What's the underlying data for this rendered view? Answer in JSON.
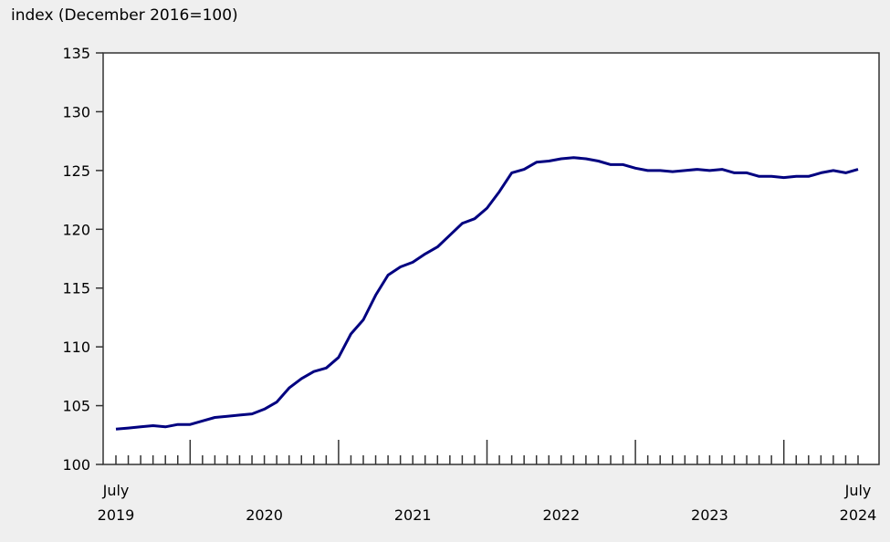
{
  "chart_data": {
    "type": "line",
    "title": "",
    "ylabel": "index (December 2016=100)",
    "xlabel": "",
    "ylim": [
      100,
      135
    ],
    "yticks": [
      100,
      105,
      110,
      115,
      120,
      125,
      130,
      135
    ],
    "grid": false,
    "line_color": "#000080",
    "x_start": "2019-07",
    "x_labels": [
      {
        "month": "2019-07",
        "line1": "July",
        "line2": "2019"
      },
      {
        "month": "2020-07",
        "line1": "",
        "line2": "2020"
      },
      {
        "month": "2021-07",
        "line1": "",
        "line2": "2021"
      },
      {
        "month": "2022-07",
        "line1": "",
        "line2": "2022"
      },
      {
        "month": "2023-07",
        "line1": "",
        "line2": "2023"
      },
      {
        "month": "2024-07",
        "line1": "July",
        "line2": "2024"
      }
    ],
    "series": [
      {
        "x": [
          "2019-07",
          "2019-08",
          "2019-09",
          "2019-10",
          "2019-11",
          "2019-12",
          "2020-01",
          "2020-02",
          "2020-03",
          "2020-04",
          "2020-05",
          "2020-06",
          "2020-07",
          "2020-08",
          "2020-09",
          "2020-10",
          "2020-11",
          "2020-12",
          "2021-01",
          "2021-02",
          "2021-03",
          "2021-04",
          "2021-05",
          "2021-06",
          "2021-07",
          "2021-08",
          "2021-09",
          "2021-10",
          "2021-11",
          "2021-12",
          "2022-01",
          "2022-02",
          "2022-03",
          "2022-04",
          "2022-05",
          "2022-06",
          "2022-07",
          "2022-08",
          "2022-09",
          "2022-10",
          "2022-11",
          "2022-12",
          "2023-01",
          "2023-02",
          "2023-03",
          "2023-04",
          "2023-05",
          "2023-06",
          "2023-07",
          "2023-08",
          "2023-09",
          "2023-10",
          "2023-11",
          "2023-12",
          "2024-01",
          "2024-02",
          "2024-03",
          "2024-04",
          "2024-05",
          "2024-06",
          "2024-07"
        ],
        "values": [
          103.0,
          103.1,
          103.2,
          103.3,
          103.2,
          103.4,
          103.4,
          103.7,
          104.0,
          104.1,
          104.2,
          104.3,
          104.7,
          105.3,
          106.5,
          107.3,
          107.9,
          108.2,
          109.1,
          111.1,
          112.3,
          114.4,
          116.1,
          116.8,
          117.2,
          117.9,
          118.5,
          119.5,
          120.5,
          120.9,
          121.8,
          123.2,
          124.8,
          125.1,
          125.7,
          125.8,
          126.0,
          126.1,
          126.0,
          125.8,
          125.5,
          125.5,
          125.2,
          125.0,
          125.0,
          124.9,
          125.0,
          125.1,
          125.0,
          125.1,
          124.8,
          124.8,
          124.5,
          124.5,
          124.4,
          124.5,
          124.5,
          124.8,
          125.0,
          124.8,
          125.1
        ]
      }
    ]
  }
}
